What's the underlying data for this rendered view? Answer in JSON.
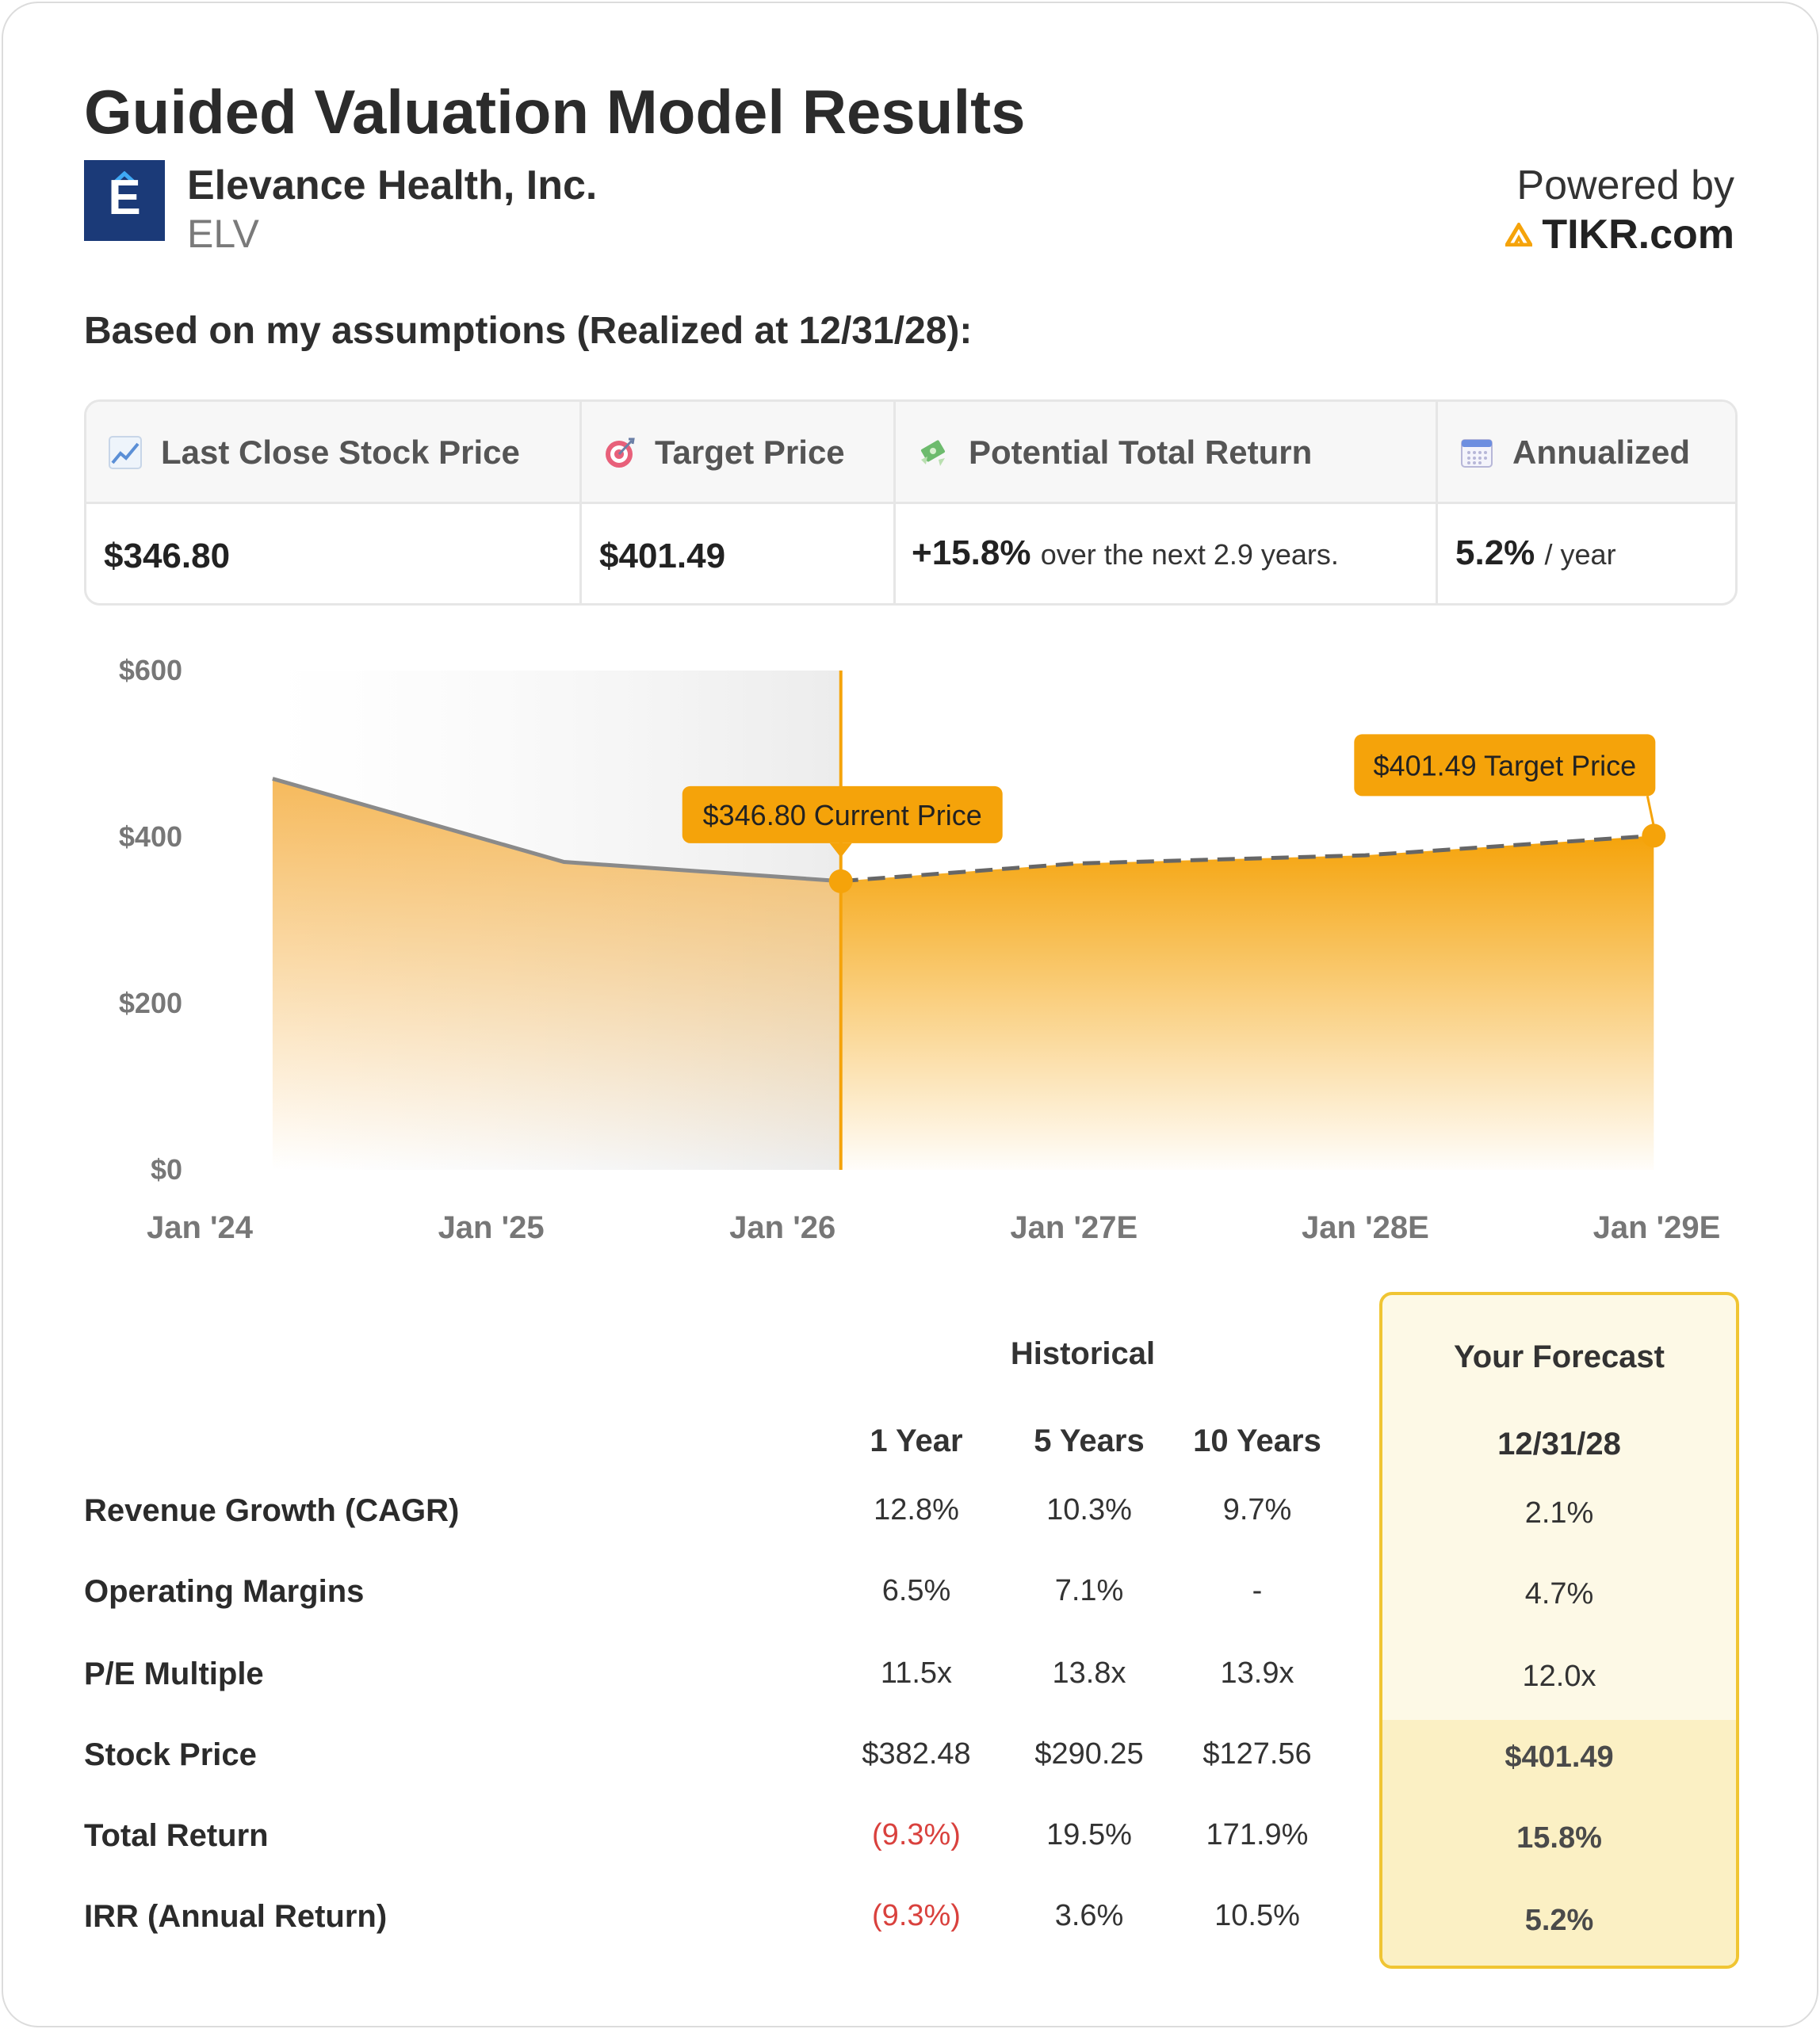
{
  "header": {
    "title": "Guided Valuation Model Results",
    "company_name": "Elevance Health, Inc.",
    "ticker": "ELV",
    "logo_letter": "E",
    "powered_by": "Powered by",
    "brand": "TIKR.com",
    "brand_color": "#f5a30a",
    "logo_color": "#1b3a78"
  },
  "assumptions_heading": "Based on my assumptions (Realized at 12/31/28):",
  "summary": {
    "columns": [
      {
        "icon": "chart-increasing-icon",
        "label": "Last Close Stock Price",
        "value": "$346.80",
        "suffix": ""
      },
      {
        "icon": "target-icon",
        "label": "Target Price",
        "value": "$401.49",
        "suffix": ""
      },
      {
        "icon": "money-with-wings-icon",
        "label": "Potential Total Return",
        "value": "+15.8%",
        "suffix": "over the next 2.9 years."
      },
      {
        "icon": "calendar-icon",
        "label": "Annualized",
        "value": "5.2%",
        "suffix": "/ year"
      }
    ]
  },
  "chart_data": {
    "type": "area",
    "y_ticks": [
      "$0",
      "$200",
      "$400",
      "$600"
    ],
    "x_ticks": [
      "Jan '24",
      "Jan '25",
      "Jan '26",
      "Jan '27E",
      "Jan '28E",
      "Jan '29E"
    ],
    "ylim": [
      0,
      600
    ],
    "xlim": [
      2024.0,
      2029.0
    ],
    "historical": {
      "x": [
        2024.25,
        2025.25,
        2026.2
      ],
      "y": [
        470,
        370,
        347
      ]
    },
    "forecast": {
      "x": [
        2026.2,
        2027.0,
        2028.0,
        2028.99
      ],
      "y": [
        347,
        368,
        378,
        401.49
      ]
    },
    "current_marker": {
      "x": 2026.2,
      "y": 346.8,
      "label": "$346.80 Current Price"
    },
    "target_marker": {
      "x": 2028.99,
      "y": 401.49,
      "label": "$401.49 Target Price"
    },
    "accent_color": "#f5a30a",
    "line_color": "#8a8a8a"
  },
  "table": {
    "historical_label": "Historical",
    "forecast_label": "Your Forecast",
    "forecast_date": "12/31/28",
    "columns": [
      "1 Year",
      "5 Years",
      "10 Years"
    ],
    "rows": [
      {
        "label": "Revenue Growth (CAGR)",
        "values": [
          "12.8%",
          "10.3%",
          "9.7%"
        ],
        "forecast": "2.1%"
      },
      {
        "label": "Operating Margins",
        "values": [
          "6.5%",
          "7.1%",
          "-"
        ],
        "forecast": "4.7%"
      },
      {
        "label": "P/E Multiple",
        "values": [
          "11.5x",
          "13.8x",
          "13.9x"
        ],
        "forecast": "12.0x"
      },
      {
        "label": "Stock Price",
        "values": [
          "$382.48",
          "$290.25",
          "$127.56"
        ],
        "forecast": "$401.49"
      },
      {
        "label": "Total Return",
        "values": [
          "(9.3%)",
          "19.5%",
          "171.9%"
        ],
        "forecast": "15.8%"
      },
      {
        "label": "IRR (Annual Return)",
        "values": [
          "(9.3%)",
          "3.6%",
          "10.5%"
        ],
        "forecast": "5.2%"
      }
    ],
    "negative_color": "#d9413d",
    "forecast_border_color": "#f0c533"
  }
}
